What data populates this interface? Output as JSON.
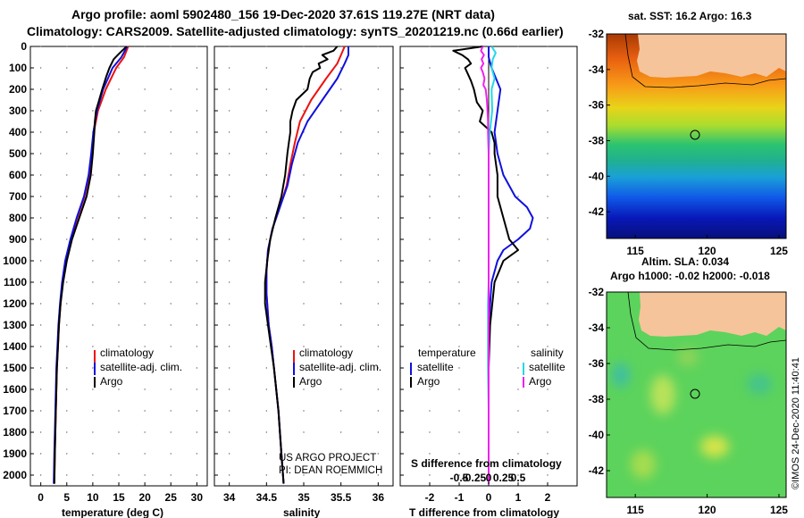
{
  "header": {
    "line1": "Argo profile: aoml 5902480_156 19-Dec-2020 37.61S 119.27E (NRT data)",
    "line2": "Climatology: CARS2009. Satellite-adjusted climatology: synTS_20201219.nc (0.66d earlier)"
  },
  "credit": {
    "line1": "US ARGO PROJECT",
    "line2": "PI: DEAN ROEMMICH",
    "imos": "©IMOS 24-Dec-2020 11:40:41"
  },
  "legend": {
    "climatology": "climatology",
    "satellite_adj": "satellite-adj. clim.",
    "argo": "Argo",
    "diff_temperature": "temperature",
    "diff_salinity": "salinity",
    "satellite": "satellite",
    "argo2": "Argo",
    "satellite2": "satellite",
    "argo3": "Argo"
  },
  "colors": {
    "climatology": "#ee1111",
    "satellite": "#1010dd",
    "argo": "#000000",
    "sal_satellite": "#22d8e8",
    "sal_argo": "#ee22ee",
    "land": "#f6c49a"
  },
  "chart_data": [
    {
      "type": "line",
      "title": "",
      "xlabel": "temperature (deg C)",
      "ylabel": "",
      "xlim": [
        -2,
        32
      ],
      "ylim": [
        2050,
        0
      ],
      "xticks": [
        0,
        5,
        10,
        15,
        20,
        25,
        30
      ],
      "yticks": [
        0,
        100,
        200,
        300,
        400,
        500,
        600,
        700,
        800,
        900,
        1000,
        1100,
        1200,
        1300,
        1400,
        1500,
        1600,
        1700,
        1800,
        1900,
        2000
      ],
      "series": [
        {
          "name": "climatology",
          "depth": [
            0,
            50,
            100,
            200,
            300,
            400,
            500,
            600,
            700,
            800,
            900,
            1000,
            1100,
            1200,
            1300,
            1400,
            1500,
            1700,
            1900,
            2040
          ],
          "values": [
            16.8,
            16.0,
            14.5,
            12.5,
            11.0,
            10.2,
            9.8,
            9.3,
            8.4,
            7.0,
            5.8,
            4.8,
            4.2,
            3.8,
            3.5,
            3.3,
            3.1,
            2.9,
            2.7,
            2.6
          ]
        },
        {
          "name": "satellite-adj. clim.",
          "depth": [
            0,
            50,
            100,
            200,
            300,
            400,
            500,
            600,
            700,
            800,
            900,
            1000,
            1100,
            1200,
            1300,
            1400,
            1500,
            1700,
            1900,
            2040
          ],
          "values": [
            16.6,
            15.5,
            13.8,
            12.0,
            10.8,
            10.1,
            9.7,
            9.2,
            8.3,
            6.9,
            5.7,
            4.7,
            4.1,
            3.7,
            3.4,
            3.2,
            3.0,
            2.8,
            2.6,
            2.5
          ]
        },
        {
          "name": "Argo",
          "depth": [
            0,
            30,
            60,
            100,
            140,
            200,
            260,
            300,
            350,
            400,
            500,
            600,
            700,
            800,
            900,
            1000,
            1100,
            1200,
            1300,
            1400,
            1500,
            1700,
            1900,
            2040
          ],
          "values": [
            16.5,
            15.2,
            14.0,
            13.2,
            12.6,
            11.8,
            11.1,
            10.6,
            10.4,
            10.3,
            10.0,
            9.6,
            8.8,
            7.4,
            6.0,
            5.0,
            4.3,
            3.8,
            3.5,
            3.3,
            3.1,
            2.9,
            2.7,
            2.6
          ]
        }
      ],
      "legend": [
        "climatology",
        "satellite-adj. clim.",
        "Argo"
      ]
    },
    {
      "type": "line",
      "title": "",
      "xlabel": "salinity",
      "ylabel": "",
      "xlim": [
        33.8,
        36.2
      ],
      "ylim": [
        2050,
        0
      ],
      "xticks": [
        34,
        34.5,
        35,
        35.5,
        36
      ],
      "series": [
        {
          "name": "climatology",
          "depth": [
            0,
            40,
            80,
            150,
            250,
            350,
            450,
            550,
            650,
            750,
            850,
            950,
            1050,
            1150,
            1300,
            1400,
            1500,
            1700,
            1900,
            2040
          ],
          "values": [
            35.55,
            35.5,
            35.45,
            35.3,
            35.1,
            34.95,
            34.88,
            34.82,
            34.77,
            34.68,
            34.58,
            34.52,
            34.5,
            34.5,
            34.53,
            34.57,
            34.6,
            34.66,
            34.7,
            34.73
          ]
        },
        {
          "name": "satellite-adj. clim.",
          "depth": [
            0,
            40,
            80,
            150,
            250,
            350,
            450,
            550,
            650,
            750,
            850,
            950,
            1050,
            1150,
            1300,
            1400,
            1500,
            1700,
            1900,
            2040
          ],
          "values": [
            35.6,
            35.6,
            35.55,
            35.45,
            35.25,
            35.05,
            34.92,
            34.84,
            34.78,
            34.68,
            34.58,
            34.52,
            34.5,
            34.5,
            34.53,
            34.57,
            34.6,
            34.66,
            34.7,
            34.73
          ]
        },
        {
          "name": "Argo",
          "depth": [
            0,
            20,
            40,
            60,
            80,
            100,
            120,
            150,
            200,
            250,
            300,
            350,
            400,
            450,
            500,
            600,
            700,
            800,
            900,
            1000,
            1100,
            1200,
            1300,
            1400,
            1500,
            1700,
            1900,
            2040
          ],
          "values": [
            35.45,
            35.4,
            35.25,
            35.32,
            35.2,
            35.22,
            35.12,
            35.08,
            35.05,
            34.9,
            34.85,
            34.82,
            34.82,
            34.8,
            34.78,
            34.75,
            34.7,
            34.62,
            34.55,
            34.51,
            34.48,
            34.48,
            34.52,
            34.56,
            34.6,
            34.66,
            34.7,
            34.73
          ]
        }
      ],
      "legend": [
        "climatology",
        "satellite-adj. clim.",
        "Argo"
      ]
    },
    {
      "type": "line",
      "title": "",
      "xlabel": "T difference from climatology",
      "xlabel2": "S difference from climatology",
      "ylabel": "",
      "xlim": [
        -3,
        3
      ],
      "ylim": [
        2050,
        0
      ],
      "xticks": [
        -2,
        -1,
        0,
        1,
        2
      ],
      "xticks_s": [
        -0.5,
        -0.25,
        0,
        0.25,
        0.5
      ],
      "s_scale": 0.5,
      "series": [
        {
          "name": "temperature satellite",
          "depth": [
            0,
            50,
            100,
            200,
            300,
            400,
            500,
            600,
            700,
            750,
            800,
            850,
            900,
            950,
            1000,
            1100,
            1300,
            1500,
            1700,
            2040
          ],
          "values": [
            0.0,
            0.0,
            0.1,
            0.4,
            0.3,
            0.2,
            0.3,
            0.5,
            0.9,
            1.3,
            1.5,
            1.4,
            1.0,
            0.5,
            0.3,
            0.1,
            0.0,
            0.0,
            0.0,
            0.0
          ]
        },
        {
          "name": "temperature Argo",
          "depth": [
            0,
            20,
            40,
            60,
            80,
            100,
            130,
            160,
            200,
            260,
            300,
            350,
            400,
            450,
            500,
            600,
            700,
            800,
            900,
            950,
            1000,
            1100,
            1300,
            1500,
            1700,
            2040
          ],
          "values": [
            -0.2,
            -1.2,
            -0.9,
            -0.7,
            -0.6,
            -0.8,
            -0.7,
            -0.6,
            -0.5,
            -0.4,
            -0.2,
            -0.3,
            0.1,
            0.2,
            0.2,
            0.3,
            0.3,
            0.5,
            0.7,
            1.0,
            0.5,
            0.2,
            0.05,
            0.0,
            0.0,
            0.0
          ]
        },
        {
          "name": "salinity satellite",
          "depth": [
            0,
            30,
            60,
            100,
            150,
            200,
            300,
            400,
            500,
            600,
            700,
            800,
            900,
            1000,
            1100,
            1200,
            1300,
            1500,
            1700,
            2040
          ],
          "values": [
            0.05,
            0.12,
            0.07,
            0.05,
            0.1,
            0.05,
            0.06,
            0.02,
            0.0,
            0.0,
            0.0,
            0.0,
            0.0,
            0.0,
            0.0,
            -0.01,
            -0.01,
            -0.01,
            0.0,
            0.0
          ]
        },
        {
          "name": "salinity Argo",
          "depth": [
            0,
            20,
            40,
            60,
            80,
            100,
            120,
            150,
            180,
            200,
            250,
            300,
            350,
            400,
            500,
            600,
            700,
            800,
            900,
            1000,
            1100,
            1300,
            1500,
            1700,
            2040
          ],
          "values": [
            -0.1,
            -0.13,
            -0.08,
            -0.12,
            -0.09,
            -0.13,
            -0.1,
            -0.07,
            -0.09,
            -0.05,
            -0.03,
            -0.02,
            -0.01,
            -0.01,
            0.0,
            0.0,
            0.0,
            0.0,
            0.0,
            0.0,
            0.0,
            0.0,
            0.0,
            0.0,
            0.0
          ]
        }
      ],
      "legend": [
        "temperature satellite",
        "temperature Argo",
        "salinity satellite",
        "salinity Argo"
      ]
    },
    {
      "type": "heatmap",
      "title": "sat. SST: 16.2 Argo: 16.3",
      "xlim": [
        113,
        125.5
      ],
      "ylim": [
        -43.5,
        -32
      ],
      "xticks": [
        115,
        120,
        125
      ],
      "yticks": [
        -32,
        -34,
        -36,
        -38,
        -40,
        -42
      ],
      "marker": {
        "lon": 119.27,
        "lat": -37.61
      }
    },
    {
      "type": "heatmap",
      "title": "Altim. SLA: 0.034",
      "subtitle": "Argo h1000: -0.02 h2000: -0.018",
      "xlim": [
        113,
        125.5
      ],
      "ylim": [
        -43.5,
        -32
      ],
      "xticks": [
        115,
        120,
        125
      ],
      "yticks": [
        -32,
        -34,
        -36,
        -38,
        -40,
        -42
      ],
      "marker": {
        "lon": 119.27,
        "lat": -37.61
      }
    }
  ]
}
